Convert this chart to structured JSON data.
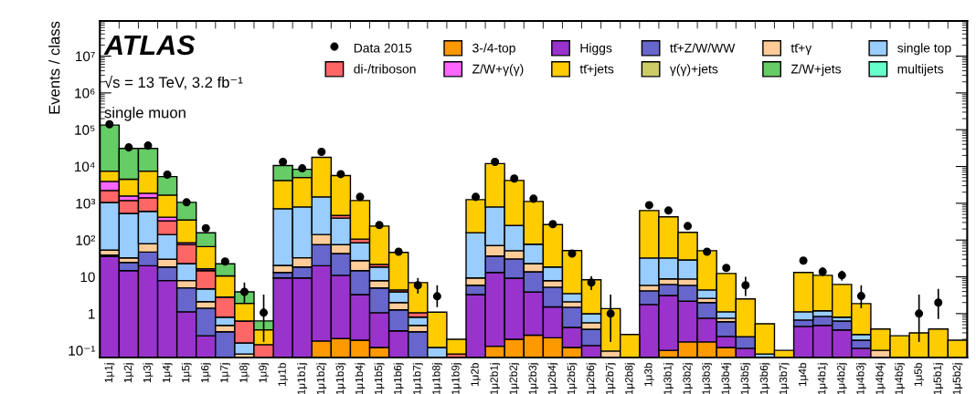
{
  "chart_data": {
    "type": "bar",
    "title": "ATLAS",
    "ylabel": "Events / class",
    "annotations": [
      "√s = 13 TeV, 3.2 fb⁻¹",
      "single muon"
    ],
    "categories": [
      "1μ1j",
      "1μ2j",
      "1μ3j",
      "1μ4j",
      "1μ5j",
      "1μ6j",
      "1μ7j",
      "1μ8j",
      "1μ9j",
      "1μ1b",
      "1μ1b1j",
      "1μ1b2j",
      "1μ1b3j",
      "1μ1b4j",
      "1μ1b5j",
      "1μ1b6j",
      "1μ1b7j",
      "1μ1b8j",
      "1μ1b9j",
      "1μ2b",
      "1μ2b1j",
      "1μ2b2j",
      "1μ2b3j",
      "1μ2b4j",
      "1μ2b5j",
      "1μ2b6j",
      "1μ2b7j",
      "1μ2b8j",
      "1μ3b",
      "1μ3b1j",
      "1μ3b2j",
      "1μ3b3j",
      "1μ3b4j",
      "1μ3b5j",
      "1μ3b6j",
      "1μ3b7j",
      "1μ4b",
      "1μ4b1j",
      "1μ4b2j",
      "1μ4b3j",
      "1μ4b4j",
      "1μ4b5j",
      "1μ5b",
      "1μ5b1j",
      "1μ5b2j"
    ],
    "stacked": true,
    "log": true,
    "legend": "top right",
    "ylim": [
      0.064,
      90000000.0
    ],
    "yticks": [
      {
        "value": 0.1,
        "label": "10⁻¹"
      },
      1,
      10,
      {
        "value": 100,
        "label": "10²"
      },
      {
        "value": 1000,
        "label": "10³"
      },
      {
        "value": 10000,
        "label": "10⁴"
      },
      {
        "value": 100000,
        "label": "10⁵"
      },
      {
        "value": 1000000,
        "label": "10⁶"
      },
      {
        "value": 10000000,
        "label": "10⁷"
      }
    ],
    "series": [
      {
        "name": "3-/4-top",
        "color": "#ff9900",
        "values": [
          null,
          null,
          null,
          null,
          null,
          null,
          null,
          null,
          null,
          null,
          null,
          0.18,
          0.21,
          0.19,
          0.12,
          null,
          null,
          null,
          null,
          null,
          0.13,
          0.2,
          0.26,
          0.22,
          0.12,
          null,
          null,
          null,
          null,
          0.1,
          0.17,
          0.17,
          0.12,
          null,
          null,
          null,
          null,
          null,
          null,
          null,
          null,
          null,
          null,
          null,
          null
        ]
      },
      {
        "name": "Higgs",
        "color": "#9933cc",
        "values": [
          36,
          14.7,
          20,
          7.9,
          1.12,
          0.25,
          null,
          null,
          null,
          9.3,
          9.3,
          19.8,
          10.8,
          3.1,
          0.94,
          0.34,
          null,
          null,
          null,
          3.3,
          13,
          9.0,
          3.6,
          1.3,
          0.3,
          0.135,
          null,
          null,
          1.77,
          3.0,
          2.0,
          0.58,
          0.12,
          0.114,
          null,
          null,
          0.45,
          0.48,
          0.36,
          0.114,
          null,
          null,
          null,
          null,
          null
        ]
      },
      {
        "name": "tt̄+Z/W/WW",
        "color": "#6666cc",
        "values": [
          3,
          10,
          27,
          10.6,
          3.9,
          1.16,
          0.32,
          null,
          null,
          3.8,
          9.2,
          55,
          32,
          11.4,
          3.9,
          0.92,
          0.32,
          null,
          null,
          2.6,
          23.5,
          21.6,
          9.9,
          3.7,
          1.07,
          0.24,
          null,
          null,
          2.4,
          3.1,
          3.7,
          1.25,
          0.36,
          0.12,
          null,
          null,
          0.22,
          0.36,
          0.27,
          0.076,
          null,
          null,
          null,
          null,
          null
        ]
      },
      {
        "name": "tt̄+γ",
        "color": "#ffcc99",
        "values": [
          14,
          8,
          33,
          11.5,
          2.9,
          0.7,
          0.16,
          0.08,
          null,
          7.3,
          14.5,
          66,
          32,
          12.8,
          2.9,
          0.74,
          0.16,
          null,
          null,
          3.4,
          34,
          20.6,
          9.2,
          2.65,
          0.61,
          0.19,
          0.096,
          null,
          1.7,
          2.6,
          2.9,
          0.6,
          0.15,
          null,
          null,
          null,
          null,
          null,
          null,
          null,
          0.1,
          null,
          null,
          null,
          null
        ]
      },
      {
        "name": "single top",
        "color": "#99ccff",
        "values": [
          1000,
          497,
          520,
          111,
          15,
          2.6,
          0.32,
          0.08,
          null,
          690,
          762,
          1350,
          319,
          56.5,
          10.6,
          1.9,
          0.32,
          0.12,
          null,
          149,
          724,
          198,
          54,
          10.6,
          1.4,
          0.43,
          null,
          null,
          26.7,
          23.8,
          20,
          1.8,
          0.37,
          null,
          0.08,
          null,
          0.45,
          0.35,
          0.17,
          0.08,
          null,
          null,
          null,
          null,
          null
        ]
      },
      {
        "name": "di-/triboson",
        "color": "#ff6666",
        "values": [
          1170,
          660,
          810,
          190,
          52,
          10,
          2.0,
          0.47,
          0.143,
          null,
          null,
          null,
          76,
          22,
          3.4,
          0.5,
          0.26,
          null,
          0.08,
          null,
          null,
          null,
          null,
          null,
          null,
          null,
          null,
          null,
          null,
          null,
          null,
          null,
          null,
          null,
          null,
          null,
          null,
          null,
          null,
          null,
          null,
          null,
          null,
          null,
          null
        ]
      },
      {
        "name": "Z/W+γ(γ)",
        "color": "#ff66ff",
        "values": [
          1700,
          390,
          460,
          87,
          9,
          1.8,
          null,
          null,
          null,
          null,
          null,
          null,
          null,
          null,
          null,
          null,
          null,
          null,
          null,
          null,
          null,
          null,
          null,
          null,
          null,
          null,
          null,
          null,
          null,
          null,
          null,
          null,
          null,
          null,
          null,
          null,
          null,
          null,
          null,
          null,
          null,
          null,
          null,
          null,
          null
        ]
      },
      {
        "name": "tt̄+jets",
        "color": "#ffcc00",
        "values": [
          3560,
          2920,
          5630,
          1250,
          267,
          50,
          7.8,
          1.27,
          0.22,
          3460,
          4235,
          16200,
          5180,
          1084,
          218,
          41.6,
          5.9,
          0.98,
          0.12,
          1100,
          11200,
          3920,
          1043,
          245,
          48,
          7.3,
          1.27,
          0.27,
          601,
          394,
          133,
          47,
          11.2,
          2.27,
          0.45,
          0.1,
          12,
          9.8,
          5.4,
          1.6,
          0.28,
          0.25,
          0.3,
          0.38,
          0.19
        ]
      },
      {
        "name": "γ(γ)+jets",
        "color": "#cccc66",
        "values": [
          null,
          null,
          null,
          null,
          null,
          null,
          null,
          null,
          null,
          null,
          null,
          null,
          null,
          null,
          null,
          null,
          null,
          null,
          null,
          null,
          null,
          null,
          null,
          null,
          null,
          null,
          null,
          null,
          null,
          null,
          null,
          null,
          null,
          null,
          null,
          null,
          null,
          null,
          null,
          null,
          null,
          null,
          null,
          null,
          null
        ]
      },
      {
        "name": "Z/W+jets",
        "color": "#66cc66",
        "values": [
          126000,
          26500,
          23500,
          3630,
          710,
          91,
          12,
          2.0,
          0.27,
          6430,
          3370,
          null,
          null,
          null,
          null,
          null,
          null,
          null,
          null,
          null,
          null,
          null,
          null,
          null,
          null,
          null,
          null,
          null,
          null,
          null,
          null,
          null,
          null,
          null,
          null,
          null,
          null,
          null,
          null,
          null,
          null,
          null,
          null,
          null,
          null
        ]
      },
      {
        "name": "multijets",
        "color": "#66ffcc",
        "values": [
          null,
          null,
          null,
          null,
          null,
          null,
          null,
          null,
          null,
          null,
          null,
          null,
          null,
          null,
          null,
          null,
          null,
          null,
          null,
          null,
          null,
          null,
          null,
          null,
          null,
          null,
          null,
          null,
          null,
          null,
          null,
          null,
          null,
          null,
          null,
          null,
          null,
          null,
          null,
          null,
          null,
          null,
          null,
          null,
          null
        ]
      },
      {
        "name": "Data 2015",
        "type": "scatter",
        "marker": "circle",
        "color": "#000000",
        "x": [
          "1μ1j",
          "1μ2j",
          "1μ3j",
          "1μ4j",
          "1μ5j",
          "1μ6j",
          "1μ7j",
          "1μ8j",
          "1μ9j",
          "1μ1b",
          "1μ1b1j",
          "1μ1b2j",
          "1μ1b3j",
          "1μ1b4j",
          "1μ1b5j",
          "1μ1b6j",
          "1μ1b7j",
          "1μ1b8j",
          "1μ2b",
          "1μ2b1j",
          "1μ2b2j",
          "1μ2b3j",
          "1μ2b4j",
          "1μ2b5j",
          "1μ2b6j",
          "1μ2b7j",
          "1μ3b",
          "1μ3b1j",
          "1μ3b2j",
          "1μ3b3j",
          "1μ3b4j",
          "1μ3b5j",
          "1μ4b",
          "1μ4b1j",
          "1μ4b2j",
          "1μ4b3j",
          "1μ5b",
          "1μ5b1j"
        ],
        "values": [
          141000,
          33000,
          37000,
          6000,
          1060,
          210,
          26,
          3.9,
          1.06,
          13300,
          8900,
          25000,
          6200,
          1490,
          255,
          48,
          5.9,
          2.96,
          1490,
          13300,
          4700,
          1330,
          270,
          43,
          7.0,
          1.0,
          890,
          634,
          240,
          48,
          17.5,
          5.9,
          27.5,
          13.8,
          11,
          3.0,
          1.0,
          2.0
        ],
        "errors": [
          null,
          null,
          null,
          null,
          null,
          null,
          null,
          [
            1.9,
            7.0
          ],
          [
            0.17,
            3.3
          ],
          null,
          null,
          null,
          null,
          null,
          null,
          null,
          [
            3.5,
            9.3
          ],
          [
            1.5,
            5.9
          ],
          null,
          null,
          null,
          null,
          null,
          null,
          [
            4.4,
            10.4
          ],
          [
            0.17,
            3.3
          ],
          null,
          null,
          null,
          null,
          null,
          [
            3.0,
            10
          ],
          null,
          [
            10.6,
            18
          ],
          [
            7.9,
            14.7
          ],
          [
            1.41,
            5.9
          ],
          [
            0.17,
            3.3
          ],
          [
            0.71,
            4.7
          ]
        ]
      }
    ]
  }
}
